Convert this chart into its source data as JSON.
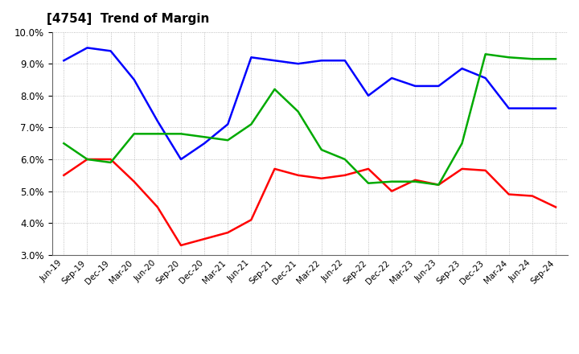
{
  "title": "[4754]  Trend of Margin",
  "x_labels": [
    "Jun-19",
    "Sep-19",
    "Dec-19",
    "Mar-20",
    "Jun-20",
    "Sep-20",
    "Dec-20",
    "Mar-21",
    "Jun-21",
    "Sep-21",
    "Dec-21",
    "Mar-22",
    "Jun-22",
    "Sep-22",
    "Dec-22",
    "Mar-23",
    "Jun-23",
    "Sep-23",
    "Dec-23",
    "Mar-24",
    "Jun-24",
    "Sep-24"
  ],
  "ordinary_income": [
    9.1,
    9.5,
    9.4,
    8.5,
    7.2,
    6.0,
    6.5,
    7.1,
    9.2,
    9.1,
    9.0,
    9.1,
    9.1,
    8.0,
    8.55,
    8.3,
    8.3,
    8.85,
    8.55,
    7.6,
    7.6,
    7.6
  ],
  "net_income": [
    5.5,
    6.0,
    6.0,
    5.3,
    4.5,
    3.3,
    3.5,
    3.7,
    4.1,
    5.7,
    5.5,
    5.4,
    5.5,
    5.7,
    5.0,
    5.35,
    5.2,
    5.7,
    5.65,
    4.9,
    4.85,
    4.5
  ],
  "operating_cashflow": [
    6.5,
    6.0,
    5.9,
    6.8,
    6.8,
    6.8,
    6.7,
    6.6,
    7.1,
    8.2,
    7.5,
    6.3,
    6.0,
    5.25,
    5.3,
    5.3,
    5.2,
    6.5,
    9.3,
    9.2,
    9.15,
    9.15
  ],
  "ylim": [
    3.0,
    10.0
  ],
  "yticks": [
    3.0,
    4.0,
    5.0,
    6.0,
    7.0,
    8.0,
    9.0,
    10.0
  ],
  "colors": {
    "ordinary_income": "#0000ff",
    "net_income": "#ff0000",
    "operating_cashflow": "#00aa00"
  },
  "line_width": 1.8,
  "background_color": "#ffffff",
  "grid_color": "#999999"
}
